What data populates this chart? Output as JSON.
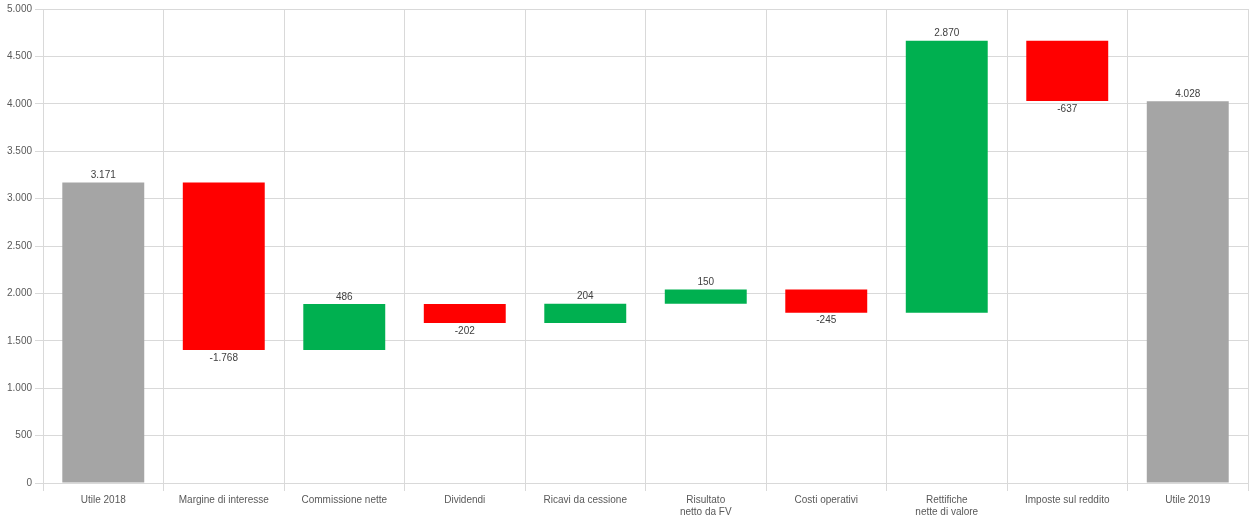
{
  "chart_data": {
    "type": "bar",
    "categories": [
      "Utile 2018",
      "Margine di interesse",
      "Commissione nette",
      "Dividendi",
      "Ricavi da cessione",
      "Risultato netto da FV",
      "Costi operativi",
      "Rettifiche nette di valore",
      "Imposte sul reddito",
      "Utile 2019"
    ],
    "values": [
      3171,
      -1768,
      486,
      -202,
      204,
      150,
      -245,
      2870,
      -637,
      4028
    ],
    "base": [
      0,
      3171,
      1403,
      1889,
      1687,
      1891,
      2041,
      1796,
      4666,
      0
    ],
    "colors": [
      "#a5a5a5",
      "#ff0000",
      "#00b050",
      "#ff0000",
      "#00b050",
      "#00b050",
      "#ff0000",
      "#00b050",
      "#ff0000",
      "#a5a5a5"
    ],
    "value_labels": [
      "3.171",
      "-1.768",
      "486",
      "-202",
      "204",
      "150",
      "-245",
      "2.870",
      "-637",
      "4.028"
    ],
    "ylim": [
      0,
      5000
    ],
    "yticks": [
      {
        "value": 0,
        "label": "0"
      },
      {
        "value": 500,
        "label": "500"
      },
      {
        "value": 1000,
        "label": "1.000"
      },
      {
        "value": 1500,
        "label": "1.500"
      },
      {
        "value": 2000,
        "label": "2.000"
      },
      {
        "value": 2500,
        "label": "2.500"
      },
      {
        "value": 3000,
        "label": "3.000"
      },
      {
        "value": 3500,
        "label": "3.500"
      },
      {
        "value": 4000,
        "label": "4.000"
      },
      {
        "value": 4500,
        "label": "4.500"
      },
      {
        "value": 5000,
        "label": "5.000"
      }
    ],
    "grid": true
  }
}
